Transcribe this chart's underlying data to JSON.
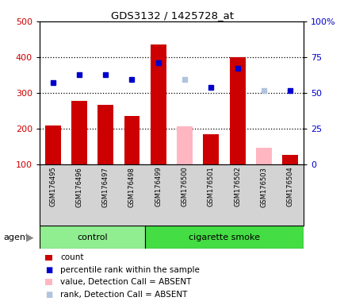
{
  "title": "GDS3132 / 1425728_at",
  "samples": [
    "GSM176495",
    "GSM176496",
    "GSM176497",
    "GSM176498",
    "GSM176499",
    "GSM176500",
    "GSM176501",
    "GSM176502",
    "GSM176503",
    "GSM176504"
  ],
  "count_present": [
    210,
    278,
    267,
    235,
    435,
    null,
    185,
    400,
    null,
    128
  ],
  "count_absent": [
    null,
    null,
    null,
    null,
    null,
    208,
    null,
    null,
    148,
    null
  ],
  "rank_present": [
    330,
    352,
    352,
    338,
    385,
    null,
    315,
    370,
    null,
    308
  ],
  "rank_absent": [
    null,
    null,
    null,
    null,
    null,
    337,
    null,
    null,
    307,
    null
  ],
  "ylim_left": [
    100,
    500
  ],
  "ylim_right": [
    0,
    100
  ],
  "yticks_left": [
    100,
    200,
    300,
    400,
    500
  ],
  "ytick_labels_left": [
    "100",
    "200",
    "300",
    "400",
    "500"
  ],
  "yticks_right": [
    0,
    25,
    50,
    75,
    100
  ],
  "ytick_labels_right": [
    "0",
    "25",
    "50",
    "75",
    "100%"
  ],
  "color_count": "#cc0000",
  "color_rank": "#0000cc",
  "color_count_absent": "#ffb6c1",
  "color_rank_absent": "#b0c4de",
  "group_control_color": "#90ee90",
  "group_smoke_color": "#44dd44",
  "n_control": 4,
  "n_smoke": 6,
  "gridline_values": [
    200,
    300,
    400
  ],
  "bar_width": 0.6,
  "legend_labels": [
    "count",
    "percentile rank within the sample",
    "value, Detection Call = ABSENT",
    "rank, Detection Call = ABSENT"
  ]
}
